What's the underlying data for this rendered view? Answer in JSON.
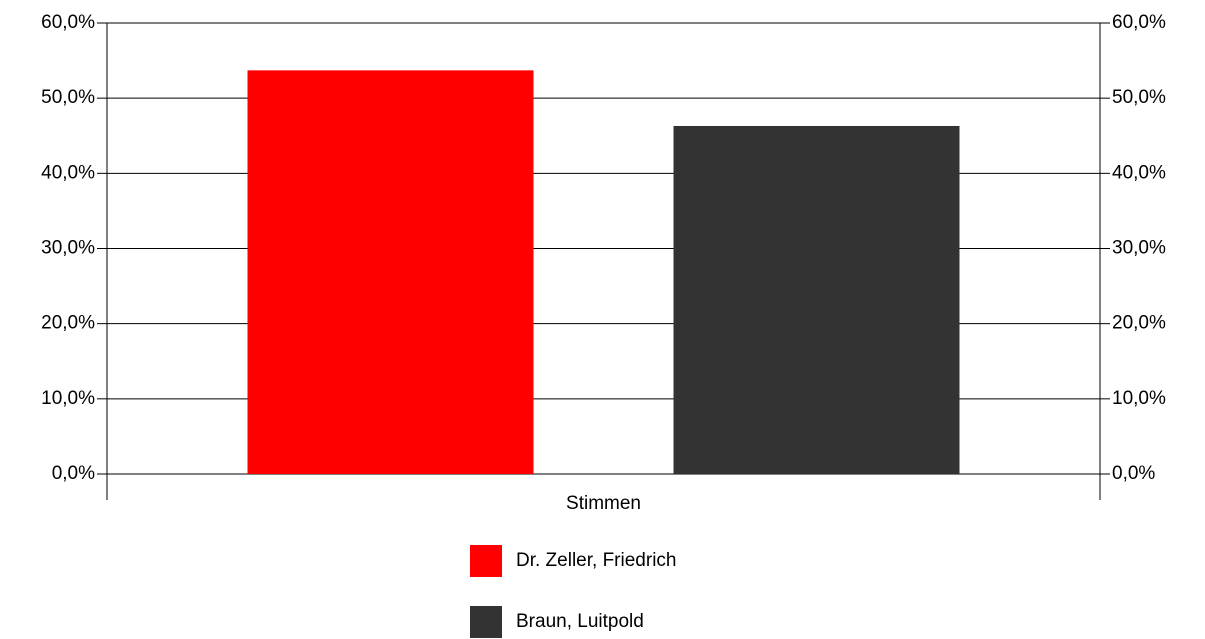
{
  "chart_data": {
    "type": "bar",
    "categories": [
      "Stimmen"
    ],
    "series": [
      {
        "name": "Dr. Zeller, Friedrich",
        "color": "#ff0000",
        "values": [
          53.7
        ]
      },
      {
        "name": "Braun, Luitpold",
        "color": "#333333",
        "values": [
          46.3
        ]
      }
    ],
    "ylim": [
      0,
      60
    ],
    "yticks": [
      {
        "value": 0,
        "label": "0,0%"
      },
      {
        "value": 10,
        "label": "10,0%"
      },
      {
        "value": 20,
        "label": "20,0%"
      },
      {
        "value": 30,
        "label": "30,0%"
      },
      {
        "value": 40,
        "label": "40,0%"
      },
      {
        "value": 50,
        "label": "50,0%"
      },
      {
        "value": 60,
        "label": "60,0%"
      }
    ],
    "y2lim": [
      0,
      60
    ],
    "y2ticks": [
      {
        "value": 0,
        "label": "0,0%"
      },
      {
        "value": 10,
        "label": "10,0%"
      },
      {
        "value": 20,
        "label": "20,0%"
      },
      {
        "value": 30,
        "label": "30,0%"
      },
      {
        "value": 40,
        "label": "40,0%"
      },
      {
        "value": 50,
        "label": "50,0%"
      },
      {
        "value": 60,
        "label": "60,0%"
      }
    ],
    "grid": true
  }
}
